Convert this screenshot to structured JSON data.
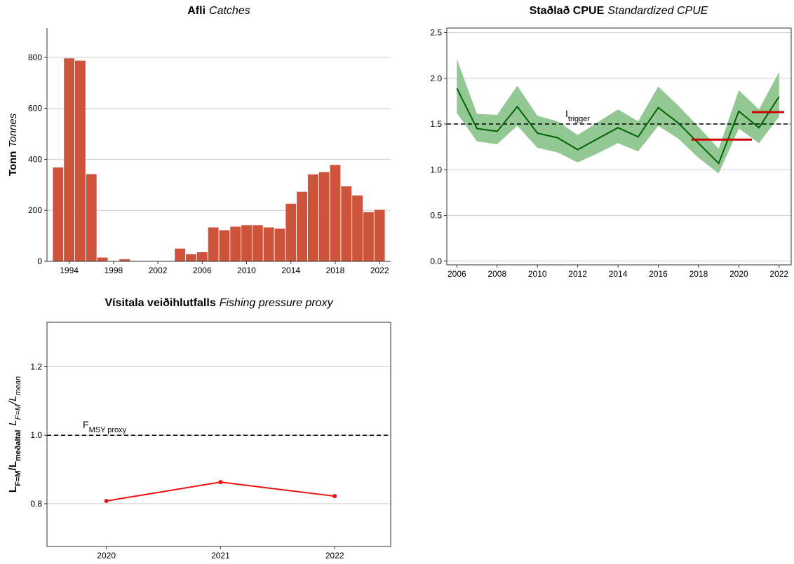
{
  "chart_data": [
    {
      "type": "bar",
      "title": {
        "is": "Afli",
        "en": "Catches"
      },
      "ylabel": {
        "is": "Tonn",
        "en": "Tonnes"
      },
      "x": [
        1993,
        1994,
        1995,
        1996,
        1997,
        1998,
        1999,
        2000,
        2001,
        2002,
        2003,
        2004,
        2005,
        2006,
        2007,
        2008,
        2009,
        2010,
        2011,
        2012,
        2013,
        2014,
        2015,
        2016,
        2017,
        2018,
        2019,
        2020,
        2021,
        2022
      ],
      "values": [
        368,
        796,
        787,
        342,
        15,
        0,
        8,
        0,
        0,
        0,
        0,
        50,
        28,
        36,
        133,
        122,
        136,
        142,
        142,
        133,
        128,
        226,
        273,
        341,
        350,
        378,
        294,
        258,
        193,
        202
      ],
      "color": "#cd533b",
      "xlim": [
        1992,
        2023
      ],
      "ylim": [
        0,
        915
      ],
      "xticks": [
        1994,
        1998,
        2002,
        2006,
        2010,
        2014,
        2018,
        2022
      ],
      "yticks": [
        0,
        200,
        400,
        600,
        800
      ],
      "grid": true,
      "box": false
    },
    {
      "type": "line",
      "title": {
        "is": "Staðlað CPUE",
        "en": "Standardized CPUE"
      },
      "x": [
        2006,
        2007,
        2008,
        2009,
        2010,
        2011,
        2012,
        2013,
        2014,
        2015,
        2016,
        2017,
        2018,
        2019,
        2020,
        2021,
        2022
      ],
      "values": [
        1.89,
        1.45,
        1.42,
        1.69,
        1.4,
        1.35,
        1.22,
        1.34,
        1.46,
        1.36,
        1.68,
        1.51,
        1.29,
        1.07,
        1.64,
        1.46,
        1.8
      ],
      "lower": [
        1.62,
        1.31,
        1.28,
        1.48,
        1.24,
        1.19,
        1.08,
        1.18,
        1.29,
        1.2,
        1.48,
        1.34,
        1.13,
        0.96,
        1.45,
        1.29,
        1.58
      ],
      "upper": [
        2.21,
        1.61,
        1.6,
        1.92,
        1.59,
        1.53,
        1.38,
        1.52,
        1.66,
        1.53,
        1.91,
        1.7,
        1.47,
        1.23,
        1.87,
        1.66,
        2.07
      ],
      "color": "#006400",
      "band_color": "#93c793",
      "ref_line": {
        "value": 1.5,
        "label": "I",
        "label_sub": "trigger"
      },
      "segments": [
        {
          "x": [
            2017.65,
            2020.65
          ],
          "value": 1.33
        },
        {
          "x": [
            2020.65,
            2022.25
          ],
          "value": 1.63
        }
      ],
      "segment_color": "#cc0000",
      "xlim": [
        2005.5,
        2022.6
      ],
      "ylim": [
        -0.04,
        2.55
      ],
      "xticks": [
        2006,
        2008,
        2010,
        2012,
        2014,
        2016,
        2018,
        2020,
        2022
      ],
      "yticks": [
        {
          "value": 0,
          "label": "0.0"
        },
        0.5,
        {
          "value": 1,
          "label": "1.0"
        },
        1.5,
        {
          "value": 2,
          "label": "2.0"
        },
        2.5
      ],
      "grid": true,
      "box": true
    },
    {
      "type": "line",
      "title": {
        "is": "Vísitala veiðihlutfalls",
        "en": "Fishing pressure proxy"
      },
      "ylabel": {
        "is": [
          {
            "text": "L",
            "sub": "F=M"
          },
          {
            "text": "/L",
            "sub": "meðaltal"
          }
        ],
        "en": [
          {
            "text": "L",
            "sub": "F=M"
          },
          {
            "text": "/L",
            "sub": "mean"
          }
        ]
      },
      "x": [
        2020,
        2021,
        2022
      ],
      "values": [
        0.808,
        0.863,
        0.822
      ],
      "color": "#ee1111",
      "markers": true,
      "ref_line": {
        "value": 1,
        "label": "F",
        "label_sub": "MSY proxy"
      },
      "xlim": [
        2019.48,
        2022.49
      ],
      "ylim": [
        0.675,
        1.33
      ],
      "xticks": [
        2020,
        2021,
        2022
      ],
      "yticks": [
        0.8,
        {
          "value": 1,
          "label": "1.0"
        },
        1.2
      ],
      "grid": true,
      "box": true
    }
  ]
}
